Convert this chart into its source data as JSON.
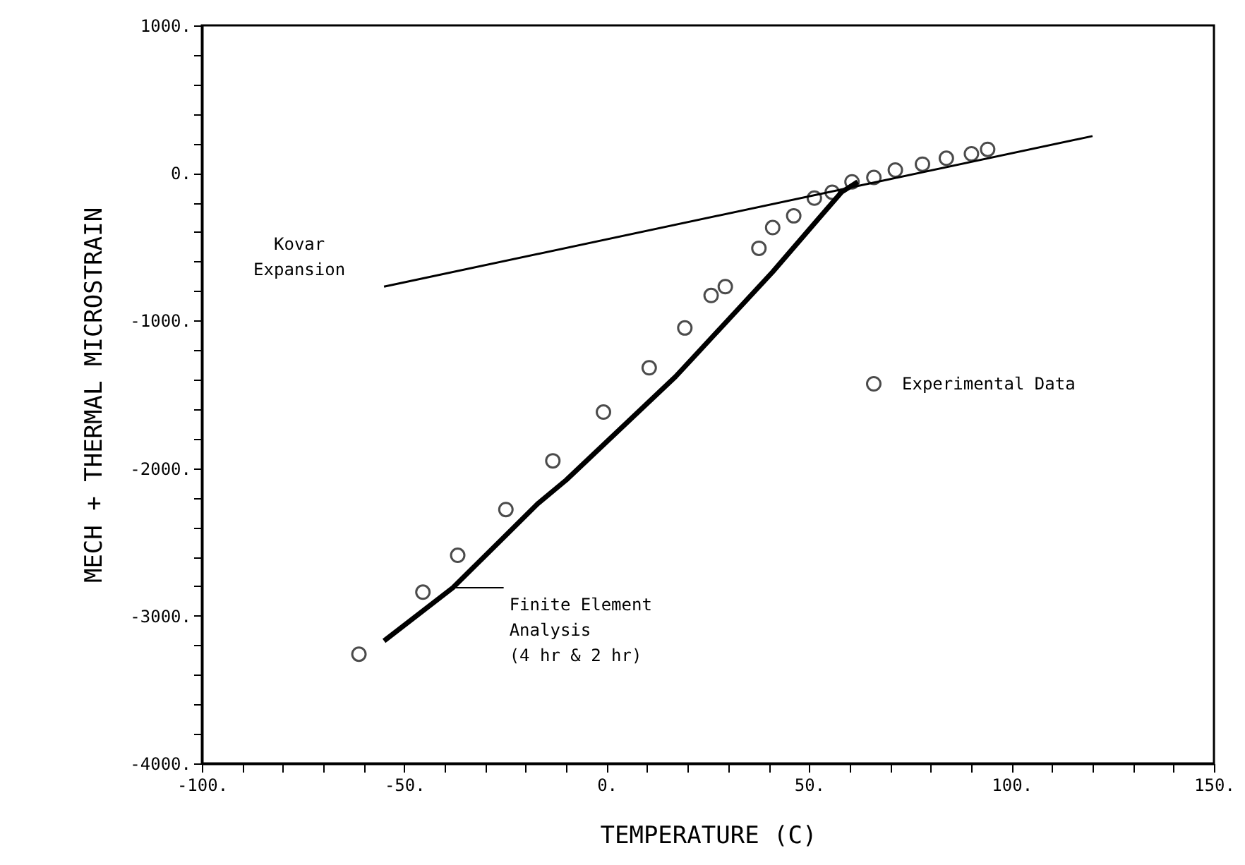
{
  "chart_data": {
    "type": "line",
    "xlabel": "TEMPERATURE (C)",
    "ylabel": "MECH + THERMAL MICROSTRAIN",
    "xlim": [
      -100,
      150
    ],
    "ylim": [
      -4000,
      1000
    ],
    "xticks": [
      {
        "value": -100,
        "label": "-100."
      },
      {
        "value": -90,
        "label": null
      },
      {
        "value": -80,
        "label": null
      },
      {
        "value": -70,
        "label": null
      },
      {
        "value": -60,
        "label": null
      },
      {
        "value": -50,
        "label": "-50."
      },
      {
        "value": -40,
        "label": null
      },
      {
        "value": -30,
        "label": null
      },
      {
        "value": -20,
        "label": null
      },
      {
        "value": -10,
        "label": null
      },
      {
        "value": 0,
        "label": "0."
      },
      {
        "value": 10,
        "label": null
      },
      {
        "value": 20,
        "label": null
      },
      {
        "value": 30,
        "label": null
      },
      {
        "value": 40,
        "label": null
      },
      {
        "value": 50,
        "label": "50."
      },
      {
        "value": 60,
        "label": null
      },
      {
        "value": 70,
        "label": null
      },
      {
        "value": 80,
        "label": null
      },
      {
        "value": 90,
        "label": null
      },
      {
        "value": 100,
        "label": "100."
      },
      {
        "value": 110,
        "label": null
      },
      {
        "value": 120,
        "label": null
      },
      {
        "value": 130,
        "label": null
      },
      {
        "value": 140,
        "label": null
      },
      {
        "value": 150,
        "label": "150."
      }
    ],
    "yticks": [
      {
        "value": -4000,
        "label": "-4000."
      },
      {
        "value": -3800,
        "label": null
      },
      {
        "value": -3600,
        "label": null
      },
      {
        "value": -3400,
        "label": null
      },
      {
        "value": -3200,
        "label": null
      },
      {
        "value": -3000,
        "label": "-3000."
      },
      {
        "value": -2800,
        "label": null
      },
      {
        "value": -2600,
        "label": null
      },
      {
        "value": -2400,
        "label": null
      },
      {
        "value": -2200,
        "label": null
      },
      {
        "value": -2000,
        "label": "-2000."
      },
      {
        "value": -1800,
        "label": null
      },
      {
        "value": -1600,
        "label": null
      },
      {
        "value": -1400,
        "label": null
      },
      {
        "value": -1200,
        "label": null
      },
      {
        "value": -1000,
        "label": "-1000."
      },
      {
        "value": -800,
        "label": null
      },
      {
        "value": -600,
        "label": null
      },
      {
        "value": -400,
        "label": null
      },
      {
        "value": -200,
        "label": null
      },
      {
        "value": 0,
        "label": "0."
      },
      {
        "value": 200,
        "label": null
      },
      {
        "value": 400,
        "label": null
      },
      {
        "value": 600,
        "label": null
      },
      {
        "value": 800,
        "label": null
      },
      {
        "value": 1000,
        "label": "1000."
      }
    ],
    "grid": false,
    "legend": "right",
    "series": [
      {
        "name": "Kovar Expansion",
        "color": "#000000",
        "marker": "none",
        "x": [
          -55,
          120
        ],
        "values": [
          -770,
          250
        ]
      },
      {
        "name": "Finite Element Analysis (4 hr & 2 hr)",
        "color": "#000000",
        "marker": "none",
        "x": [
          -55,
          -38,
          -17,
          -10,
          17,
          41,
          52,
          58,
          62
        ],
        "values": [
          -3170,
          -2810,
          -2240,
          -2080,
          -1380,
          -670,
          -320,
          -130,
          -60
        ]
      },
      {
        "name": "Experimental Data",
        "type": "scatter",
        "color": "#000000",
        "marker": "circle",
        "x": [
          -61.2,
          -45.4,
          -36.8,
          -24.9,
          -13.3,
          -0.8,
          10.5,
          19.3,
          25.8,
          29.3,
          37.6,
          41.0,
          46.2,
          51.3,
          55.7,
          60.6,
          66.0,
          71.3,
          78.0,
          83.9,
          90.1,
          94.1
        ],
        "values": [
          -3260,
          -2840,
          -2590,
          -2280,
          -1950,
          -1620,
          -1320,
          -1050,
          -830,
          -770,
          -510,
          -370,
          -290,
          -170,
          -130,
          -60,
          -30,
          20,
          60,
          100,
          130,
          160
        ]
      }
    ]
  }
}
